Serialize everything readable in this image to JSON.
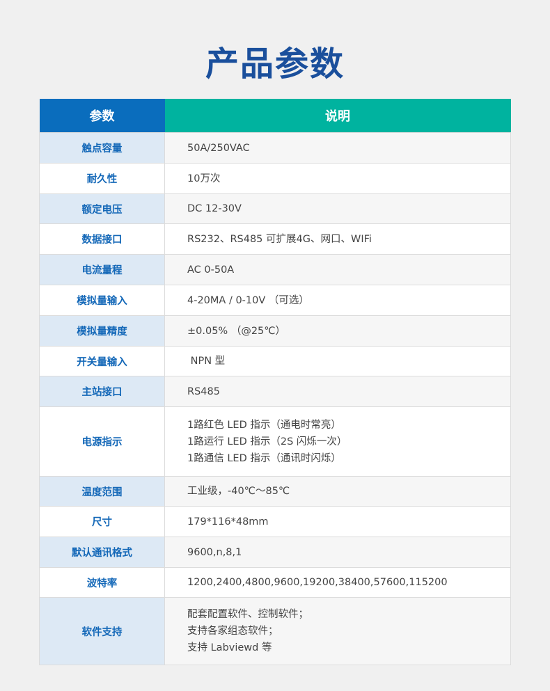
{
  "title": "产品参数",
  "header": {
    "param": "参数",
    "desc": "说明"
  },
  "colors": {
    "title": "#1a4f9c",
    "header_param": "#0a6dbd",
    "header_desc": "#00b39f",
    "key_text": "#1468b8"
  },
  "rows": [
    {
      "key": "触点容量",
      "lines": [
        "50A/250VAC"
      ]
    },
    {
      "key": "耐久性",
      "lines": [
        "10万次"
      ]
    },
    {
      "key": "额定电压",
      "lines": [
        "DC 12-30V"
      ]
    },
    {
      "key": "数据接口",
      "lines": [
        "RS232、RS485 可扩展4G、网口、WIFi"
      ]
    },
    {
      "key": "电流量程",
      "lines": [
        "AC 0-50A"
      ]
    },
    {
      "key": "模拟量输入",
      "lines": [
        "4-20MA / 0-10V （可选）"
      ]
    },
    {
      "key": "模拟量精度",
      "lines": [
        "±0.05% （@25℃）"
      ]
    },
    {
      "key": "开关量输入",
      "lines": [
        " NPN 型"
      ]
    },
    {
      "key": "主站接口",
      "lines": [
        "RS485"
      ]
    },
    {
      "key": "电源指示",
      "lines": [
        "1路红色 LED 指示（通电时常亮）",
        "1路运行 LED 指示（2S 闪烁一次）",
        "1路通信 LED 指示（通讯时闪烁）"
      ]
    },
    {
      "key": "温度范围",
      "lines": [
        "工业级，-40℃～85℃"
      ]
    },
    {
      "key": "尺寸",
      "lines": [
        "179*116*48mm"
      ]
    },
    {
      "key": "默认通讯格式",
      "lines": [
        "9600,n,8,1"
      ]
    },
    {
      "key": "波特率",
      "lines": [
        "1200,2400,4800,9600,19200,38400,57600,115200"
      ]
    },
    {
      "key": "软件支持",
      "lines": [
        "配套配置软件、控制软件；",
        "支持各家组态软件；",
        "支持 Labviewd 等"
      ]
    }
  ]
}
